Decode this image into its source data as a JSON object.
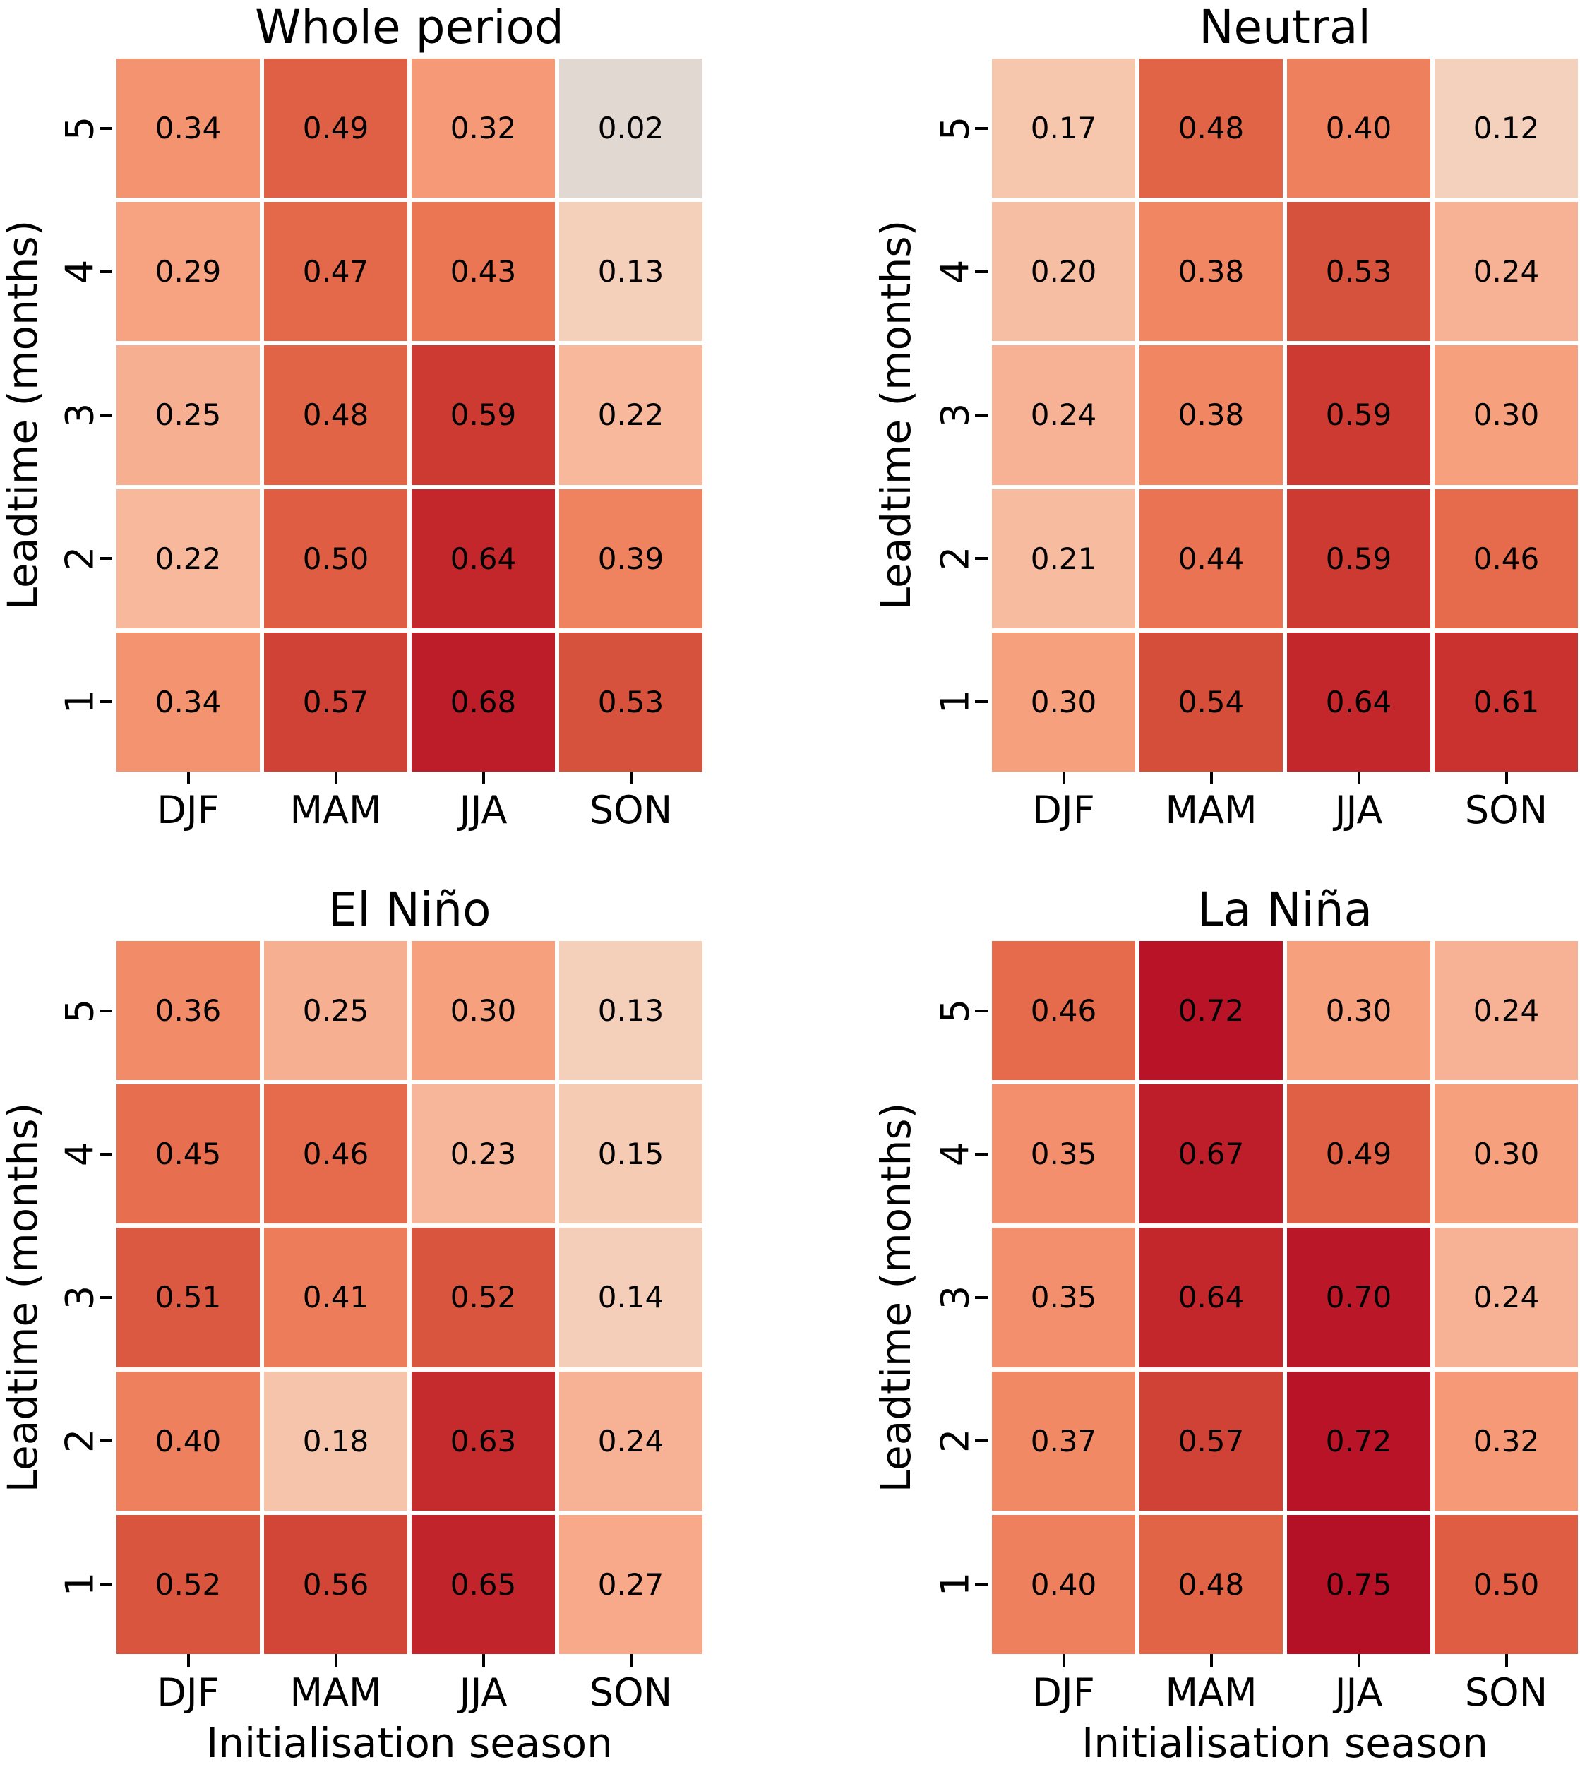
{
  "figure": {
    "background": "#ffffff"
  },
  "chart_data": [
    {
      "type": "heatmap",
      "title": "Whole period",
      "x_categories": [
        "DJF",
        "MAM",
        "JJA",
        "SON"
      ],
      "y_categories": [
        "5",
        "4",
        "3",
        "2",
        "1"
      ],
      "ylabel": "Leadtime (months)",
      "xlabel": "",
      "values": [
        [
          0.34,
          0.49,
          0.32,
          0.02
        ],
        [
          0.29,
          0.47,
          0.43,
          0.13
        ],
        [
          0.25,
          0.48,
          0.59,
          0.22
        ],
        [
          0.22,
          0.5,
          0.64,
          0.39
        ],
        [
          0.34,
          0.57,
          0.68,
          0.53
        ]
      ]
    },
    {
      "type": "heatmap",
      "title": "Neutral",
      "x_categories": [
        "DJF",
        "MAM",
        "JJA",
        "SON"
      ],
      "y_categories": [
        "5",
        "4",
        "3",
        "2",
        "1"
      ],
      "ylabel": "Leadtime (months)",
      "xlabel": "",
      "values": [
        [
          0.17,
          0.48,
          0.4,
          0.12
        ],
        [
          0.2,
          0.38,
          0.53,
          0.24
        ],
        [
          0.24,
          0.38,
          0.59,
          0.3
        ],
        [
          0.21,
          0.44,
          0.59,
          0.46
        ],
        [
          0.3,
          0.54,
          0.64,
          0.61
        ]
      ]
    },
    {
      "type": "heatmap",
      "title": "El Niño",
      "x_categories": [
        "DJF",
        "MAM",
        "JJA",
        "SON"
      ],
      "y_categories": [
        "5",
        "4",
        "3",
        "2",
        "1"
      ],
      "ylabel": "Leadtime (months)",
      "xlabel": "Initialisation season",
      "values": [
        [
          0.36,
          0.25,
          0.3,
          0.13
        ],
        [
          0.45,
          0.46,
          0.23,
          0.15
        ],
        [
          0.51,
          0.41,
          0.52,
          0.14
        ],
        [
          0.4,
          0.18,
          0.63,
          0.24
        ],
        [
          0.52,
          0.56,
          0.65,
          0.27
        ]
      ]
    },
    {
      "type": "heatmap",
      "title": "La Niña",
      "x_categories": [
        "DJF",
        "MAM",
        "JJA",
        "SON"
      ],
      "y_categories": [
        "5",
        "4",
        "3",
        "2",
        "1"
      ],
      "ylabel": "Leadtime (months)",
      "xlabel": "Initialisation season",
      "values": [
        [
          0.46,
          0.72,
          0.3,
          0.24
        ],
        [
          0.35,
          0.67,
          0.49,
          0.3
        ],
        [
          0.35,
          0.64,
          0.7,
          0.24
        ],
        [
          0.37,
          0.57,
          0.72,
          0.32
        ],
        [
          0.4,
          0.48,
          0.75,
          0.5
        ]
      ]
    }
  ],
  "style": {
    "cell_text_color": "#000000",
    "gridline_color": "#ffffff",
    "tick_color": "#000000",
    "value_decimals": 2,
    "colormap_stops": [
      [
        0.0,
        "#ddd9d6"
      ],
      [
        0.03,
        "#e3d8cf"
      ],
      [
        0.08,
        "#eed6c6"
      ],
      [
        0.13,
        "#f4d0bb"
      ],
      [
        0.18,
        "#f6c4aa"
      ],
      [
        0.24,
        "#f7b295"
      ],
      [
        0.3,
        "#f7a07e"
      ],
      [
        0.36,
        "#f28c68"
      ],
      [
        0.42,
        "#ec7a57"
      ],
      [
        0.48,
        "#e26447"
      ],
      [
        0.54,
        "#d54e3a"
      ],
      [
        0.6,
        "#cb3630"
      ],
      [
        0.66,
        "#bf202a"
      ],
      [
        0.72,
        "#b81327"
      ],
      [
        0.8,
        "#ae0d25"
      ]
    ]
  }
}
